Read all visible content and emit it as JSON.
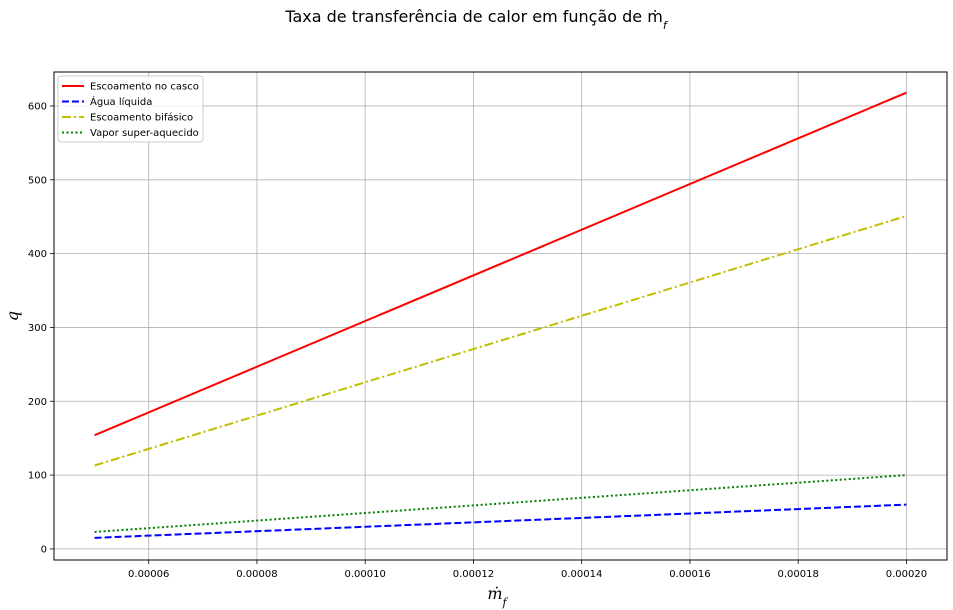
{
  "chart_data": {
    "type": "line",
    "title": "Taxa de transferência de calor em função de ṁ",
    "title_sub": "f",
    "xlabel": "ṁ",
    "xlabel_sub": "f",
    "ylabel": "q",
    "x": [
      5e-05,
      0.0002
    ],
    "xlim": [
      4.25e-05,
      0.0002075
    ],
    "ylim": [
      -15,
      646
    ],
    "xticks": [
      6e-05,
      8e-05,
      0.0001,
      0.00012,
      0.00014,
      0.00016,
      0.00018,
      0.0002
    ],
    "xtick_labels": [
      "0.00006",
      "0.00008",
      "0.00010",
      "0.00012",
      "0.00014",
      "0.00016",
      "0.00018",
      "0.00020"
    ],
    "yticks": [
      0,
      100,
      200,
      300,
      400,
      500,
      600
    ],
    "ytick_labels": [
      "0",
      "100",
      "200",
      "300",
      "400",
      "500",
      "600"
    ],
    "grid": true,
    "legend_position": "top-left",
    "series": [
      {
        "name": "Escoamento no casco",
        "values": [
          154,
          618
        ],
        "color": "#ff0000",
        "style": "solid"
      },
      {
        "name": "Água líquida",
        "values": [
          15,
          60
        ],
        "color": "#0000ff",
        "style": "dashed"
      },
      {
        "name": "Escoamento bifásico",
        "values": [
          113,
          451
        ],
        "color": "#bfbf00",
        "style": "dashdot"
      },
      {
        "name": "Vapor super-aquecido",
        "values": [
          23,
          100
        ],
        "color": "#008000",
        "style": "dotted"
      }
    ]
  }
}
